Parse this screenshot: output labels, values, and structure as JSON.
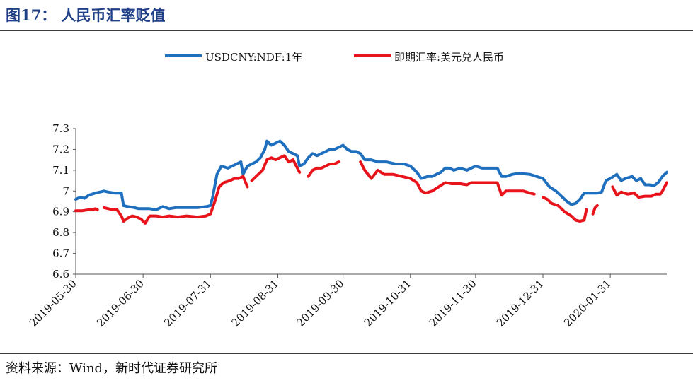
{
  "header": {
    "title": "图17：  人民币汇率贬值"
  },
  "footer": {
    "source": "资料来源：Wind，新时代证券研究所"
  },
  "colors": {
    "title": "#1f3f86",
    "series_blue": "#1f6fbf",
    "series_red": "#e8141b"
  },
  "chart_data": {
    "type": "line",
    "title": "",
    "xlabel": "",
    "ylabel": "",
    "ylim": [
      6.6,
      7.3
    ],
    "yticks": [
      6.6,
      6.7,
      6.8,
      6.9,
      7,
      7.1,
      7.2,
      7.3
    ],
    "ytick_labels": [
      "6.6",
      "6.7",
      "6.8",
      "6.9",
      "7",
      "7.1",
      "7.2",
      "7.3"
    ],
    "xlim": [
      "2019-05-30",
      "2020-02-26"
    ],
    "xticks": [
      "2019-05-30",
      "2019-06-30",
      "2019-07-31",
      "2019-08-31",
      "2019-09-30",
      "2019-10-31",
      "2019-11-30",
      "2019-12-31",
      "2020-01-31"
    ],
    "legend": "top-center",
    "series": [
      {
        "name": "USDCNY:NDF:1年",
        "color": "#1f6fbf",
        "points": [
          [
            "2019-05-30",
            6.96
          ],
          [
            "2019-06-01",
            6.97
          ],
          [
            "2019-06-03",
            6.965
          ],
          [
            "2019-06-05",
            6.98
          ],
          [
            "2019-06-08",
            6.99
          ],
          [
            "2019-06-10",
            6.995
          ],
          [
            "2019-06-12",
            7.0
          ],
          [
            "2019-06-14",
            6.995
          ],
          [
            "2019-06-17",
            6.99
          ],
          [
            "2019-06-20",
            6.99
          ],
          [
            "2019-06-21",
            6.93
          ],
          [
            "2019-06-23",
            6.925
          ],
          [
            "2019-06-26",
            6.92
          ],
          [
            "2019-06-28",
            6.915
          ],
          [
            "2019-06-30",
            6.915
          ],
          [
            "2019-07-03",
            6.915
          ],
          [
            "2019-07-06",
            6.91
          ],
          [
            "2019-07-09",
            6.925
          ],
          [
            "2019-07-12",
            6.915
          ],
          [
            "2019-07-15",
            6.92
          ],
          [
            "2019-07-20",
            6.92
          ],
          [
            "2019-07-25",
            6.92
          ],
          [
            "2019-07-29",
            6.925
          ],
          [
            "2019-07-31",
            6.93
          ],
          [
            "2019-08-01",
            6.97
          ],
          [
            "2019-08-03",
            7.08
          ],
          [
            "2019-08-05",
            7.12
          ],
          [
            "2019-08-08",
            7.11
          ],
          [
            "2019-08-10",
            7.12
          ],
          [
            "2019-08-12",
            7.13
          ],
          [
            "2019-08-14",
            7.14
          ],
          [
            "2019-08-15",
            7.08
          ],
          [
            "2019-08-17",
            7.12
          ],
          [
            "2019-08-19",
            7.13
          ],
          [
            "2019-08-21",
            7.14
          ],
          [
            "2019-08-23",
            7.16
          ],
          [
            "2019-08-25",
            7.2
          ],
          [
            "2019-08-26",
            7.24
          ],
          [
            "2019-08-28",
            7.22
          ],
          [
            "2019-08-30",
            7.23
          ],
          [
            "2019-09-01",
            7.24
          ],
          [
            "2019-09-03",
            7.22
          ],
          [
            "2019-09-05",
            7.19
          ],
          [
            "2019-09-07",
            7.18
          ],
          [
            "2019-09-09",
            7.17
          ],
          [
            "2019-09-10",
            7.12
          ],
          [
            "2019-09-12",
            7.13
          ],
          [
            "2019-09-14",
            7.16
          ],
          [
            "2019-09-16",
            7.18
          ],
          [
            "2019-09-18",
            7.17
          ],
          [
            "2019-09-20",
            7.18
          ],
          [
            "2019-09-22",
            7.19
          ],
          [
            "2019-09-24",
            7.2
          ],
          [
            "2019-09-26",
            7.2
          ],
          [
            "2019-09-28",
            7.21
          ],
          [
            "2019-09-30",
            7.22
          ],
          [
            "2019-10-02",
            7.2
          ],
          [
            "2019-10-04",
            7.19
          ],
          [
            "2019-10-06",
            7.19
          ],
          [
            "2019-10-08",
            7.18
          ],
          [
            "2019-10-10",
            7.15
          ],
          [
            "2019-10-13",
            7.15
          ],
          [
            "2019-10-16",
            7.14
          ],
          [
            "2019-10-20",
            7.14
          ],
          [
            "2019-10-24",
            7.13
          ],
          [
            "2019-10-28",
            7.13
          ],
          [
            "2019-10-31",
            7.12
          ],
          [
            "2019-11-03",
            7.09
          ],
          [
            "2019-11-05",
            7.06
          ],
          [
            "2019-11-08",
            7.07
          ],
          [
            "2019-11-10",
            7.07
          ],
          [
            "2019-11-12",
            7.08
          ],
          [
            "2019-11-14",
            7.09
          ],
          [
            "2019-11-16",
            7.11
          ],
          [
            "2019-11-18",
            7.11
          ],
          [
            "2019-11-20",
            7.1
          ],
          [
            "2019-11-23",
            7.11
          ],
          [
            "2019-11-26",
            7.1
          ],
          [
            "2019-11-28",
            7.11
          ],
          [
            "2019-11-30",
            7.12
          ],
          [
            "2019-12-03",
            7.11
          ],
          [
            "2019-12-07",
            7.11
          ],
          [
            "2019-12-10",
            7.11
          ],
          [
            "2019-12-12",
            7.07
          ],
          [
            "2019-12-14",
            7.07
          ],
          [
            "2019-12-17",
            7.08
          ],
          [
            "2019-12-20",
            7.085
          ],
          [
            "2019-12-25",
            7.08
          ],
          [
            "2019-12-28",
            7.07
          ],
          [
            "2019-12-31",
            7.06
          ],
          [
            "2020-01-03",
            7.02
          ],
          [
            "2020-01-06",
            7.0
          ],
          [
            "2020-01-09",
            6.97
          ],
          [
            "2020-01-11",
            6.95
          ],
          [
            "2020-01-13",
            6.935
          ],
          [
            "2020-01-15",
            6.94
          ],
          [
            "2020-01-17",
            6.96
          ],
          [
            "2020-01-19",
            6.99
          ],
          [
            "2020-01-21",
            6.99
          ],
          [
            "2020-01-25",
            6.99
          ],
          [
            "2020-01-27",
            6.995
          ],
          [
            "2020-01-29",
            7.05
          ],
          [
            "2020-01-31",
            7.06
          ],
          [
            "2020-02-03",
            7.08
          ],
          [
            "2020-02-05",
            7.05
          ],
          [
            "2020-02-07",
            7.06
          ],
          [
            "2020-02-10",
            7.07
          ],
          [
            "2020-02-12",
            7.05
          ],
          [
            "2020-02-14",
            7.06
          ],
          [
            "2020-02-16",
            7.03
          ],
          [
            "2020-02-18",
            7.03
          ],
          [
            "2020-02-20",
            7.025
          ],
          [
            "2020-02-22",
            7.04
          ],
          [
            "2020-02-24",
            7.07
          ],
          [
            "2020-02-26",
            7.09
          ]
        ]
      },
      {
        "name": "即期汇率:美元兑人民币",
        "color": "#e8141b",
        "segments": [
          [
            [
              "2019-05-30",
              6.905
            ],
            [
              "2019-06-02",
              6.905
            ],
            [
              "2019-06-05",
              6.91
            ],
            [
              "2019-06-07",
              6.91
            ],
            [
              "2019-06-08",
              6.915
            ],
            [
              "2019-06-09",
              6.91
            ]
          ],
          [
            [
              "2019-06-12",
              6.92
            ],
            [
              "2019-06-14",
              6.915
            ],
            [
              "2019-06-16",
              6.91
            ],
            [
              "2019-06-18",
              6.91
            ],
            [
              "2019-06-20",
              6.88
            ],
            [
              "2019-06-21",
              6.855
            ],
            [
              "2019-06-23",
              6.87
            ],
            [
              "2019-06-25",
              6.88
            ],
            [
              "2019-06-27",
              6.875
            ],
            [
              "2019-06-29",
              6.865
            ],
            [
              "2019-07-01",
              6.845
            ],
            [
              "2019-07-03",
              6.88
            ],
            [
              "2019-07-06",
              6.88
            ],
            [
              "2019-07-09",
              6.875
            ],
            [
              "2019-07-12",
              6.88
            ],
            [
              "2019-07-16",
              6.875
            ],
            [
              "2019-07-20",
              6.88
            ],
            [
              "2019-07-25",
              6.875
            ],
            [
              "2019-07-29",
              6.88
            ],
            [
              "2019-07-31",
              6.89
            ],
            [
              "2019-08-02",
              6.95
            ],
            [
              "2019-08-04",
              7.02
            ],
            [
              "2019-08-06",
              7.04
            ],
            [
              "2019-08-09",
              7.05
            ],
            [
              "2019-08-11",
              7.06
            ],
            [
              "2019-08-13",
              7.06
            ],
            [
              "2019-08-15",
              7.07
            ],
            [
              "2019-08-17",
              7.02
            ]
          ],
          [
            [
              "2019-08-19",
              7.05
            ],
            [
              "2019-08-21",
              7.07
            ],
            [
              "2019-08-24",
              7.1
            ],
            [
              "2019-08-26",
              7.15
            ],
            [
              "2019-08-28",
              7.16
            ],
            [
              "2019-08-30",
              7.15
            ],
            [
              "2019-09-01",
              7.16
            ],
            [
              "2019-09-03",
              7.17
            ],
            [
              "2019-09-05",
              7.14
            ],
            [
              "2019-09-07",
              7.15
            ],
            [
              "2019-09-10",
              7.09
            ]
          ],
          [
            [
              "2019-09-14",
              7.07
            ],
            [
              "2019-09-16",
              7.1
            ],
            [
              "2019-09-18",
              7.11
            ],
            [
              "2019-09-20",
              7.11
            ],
            [
              "2019-09-22",
              7.12
            ],
            [
              "2019-09-24",
              7.13
            ],
            [
              "2019-09-26",
              7.13
            ],
            [
              "2019-09-28",
              7.14
            ]
          ],
          [
            [
              "2019-10-08",
              7.14
            ],
            [
              "2019-10-10",
              7.1
            ],
            [
              "2019-10-13",
              7.06
            ],
            [
              "2019-10-16",
              7.1
            ],
            [
              "2019-10-19",
              7.08
            ],
            [
              "2019-10-23",
              7.08
            ],
            [
              "2019-10-27",
              7.07
            ],
            [
              "2019-10-31",
              7.06
            ],
            [
              "2019-11-03",
              7.04
            ],
            [
              "2019-11-05",
              7.0
            ],
            [
              "2019-11-07",
              6.99
            ],
            [
              "2019-11-10",
              7.0
            ],
            [
              "2019-11-13",
              7.02
            ],
            [
              "2019-11-16",
              7.04
            ],
            [
              "2019-11-19",
              7.035
            ],
            [
              "2019-11-23",
              7.035
            ],
            [
              "2019-11-26",
              7.03
            ],
            [
              "2019-11-28",
              7.04
            ],
            [
              "2019-12-01",
              7.04
            ],
            [
              "2019-12-06",
              7.04
            ],
            [
              "2019-12-10",
              7.04
            ],
            [
              "2019-12-12",
              6.98
            ],
            [
              "2019-12-14",
              7.0
            ],
            [
              "2019-12-18",
              7.0
            ],
            [
              "2019-12-22",
              7.0
            ],
            [
              "2019-12-25",
              6.99
            ],
            [
              "2019-12-27",
              6.985
            ]
          ],
          [
            [
              "2019-12-31",
              6.97
            ],
            [
              "2020-01-02",
              6.96
            ],
            [
              "2020-01-04",
              6.94
            ],
            [
              "2020-01-07",
              6.93
            ],
            [
              "2020-01-10",
              6.9
            ],
            [
              "2020-01-13",
              6.88
            ],
            [
              "2020-01-15",
              6.86
            ],
            [
              "2020-01-17",
              6.855
            ],
            [
              "2020-01-19",
              6.86
            ],
            [
              "2020-01-20",
              6.91
            ]
          ],
          [
            [
              "2020-01-23",
              6.89
            ],
            [
              "2020-01-24",
              6.92
            ],
            [
              "2020-01-25",
              6.93
            ]
          ],
          [
            [
              "2020-02-01",
              7.02
            ],
            [
              "2020-02-03",
              6.98
            ],
            [
              "2020-02-05",
              6.995
            ],
            [
              "2020-02-08",
              6.985
            ],
            [
              "2020-02-11",
              6.99
            ],
            [
              "2020-02-13",
              6.97
            ],
            [
              "2020-02-16",
              6.975
            ],
            [
              "2020-02-19",
              6.975
            ],
            [
              "2020-02-21",
              6.985
            ],
            [
              "2020-02-23",
              6.985
            ],
            [
              "2020-02-24",
              7.0
            ],
            [
              "2020-02-25",
              7.02
            ],
            [
              "2020-02-26",
              7.04
            ]
          ]
        ]
      }
    ]
  }
}
